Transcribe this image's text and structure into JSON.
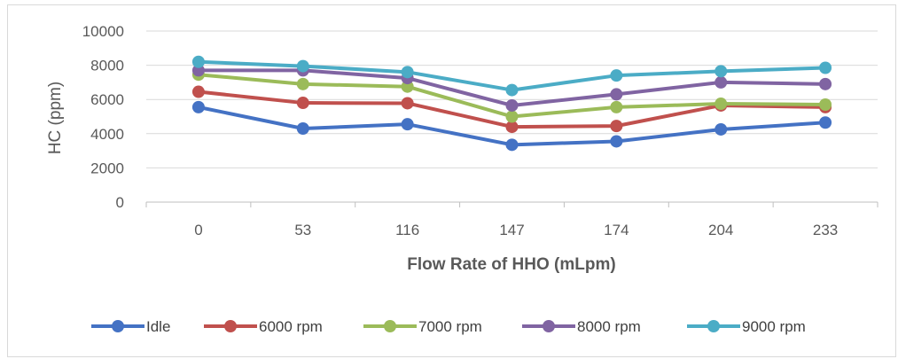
{
  "chart_data": {
    "type": "line",
    "title": "",
    "xlabel": "Flow Rate of HHO (mLpm)",
    "ylabel": "HC (ppm)",
    "categories": [
      "0",
      "53",
      "116",
      "147",
      "174",
      "204",
      "233"
    ],
    "ylim": [
      0,
      10000
    ],
    "yticks": [
      "0",
      "2000",
      "4000",
      "6000",
      "8000",
      "10000"
    ],
    "grid": true,
    "legend_position": "bottom",
    "series": [
      {
        "name": "Idle",
        "color": "#4472C4",
        "values": [
          5550,
          4300,
          4550,
          3350,
          3550,
          4250,
          4650
        ]
      },
      {
        "name": "6000 rpm",
        "color": "#C0504D",
        "values": [
          6450,
          5800,
          5780,
          4400,
          4450,
          5650,
          5550
        ]
      },
      {
        "name": "7000 rpm",
        "color": "#9BBB59",
        "values": [
          7450,
          6900,
          6750,
          5000,
          5550,
          5750,
          5700
        ]
      },
      {
        "name": "8000 rpm",
        "color": "#8064A2",
        "values": [
          7700,
          7700,
          7250,
          5650,
          6300,
          7000,
          6900
        ]
      },
      {
        "name": "9000 rpm",
        "color": "#4BACC6",
        "values": [
          8200,
          7950,
          7600,
          6550,
          7400,
          7650,
          7850
        ]
      }
    ]
  }
}
